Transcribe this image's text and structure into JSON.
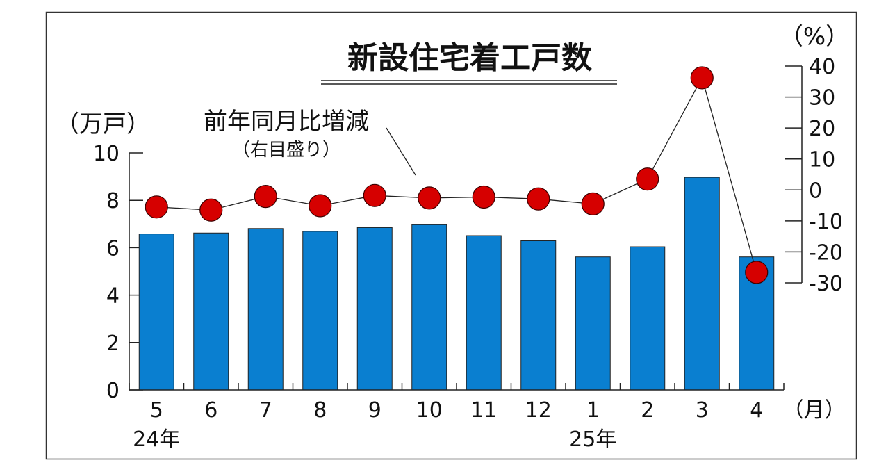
{
  "chart_data": {
    "type": "bar",
    "title": "新設住宅着工戸数",
    "categories": [
      "5",
      "6",
      "7",
      "8",
      "9",
      "10",
      "11",
      "12",
      "1",
      "2",
      "3",
      "4"
    ],
    "x_unit_label": "（月）",
    "year_labels": [
      {
        "text": "24年",
        "category": "5"
      },
      {
        "text": "25年",
        "category": "1"
      }
    ],
    "left_axis": {
      "unit_label": "（万戸）",
      "ylim": [
        0,
        10
      ],
      "ticks": [
        "0",
        "2",
        "4",
        "6",
        "8",
        "10"
      ]
    },
    "right_axis": {
      "unit_label": "（%）",
      "ylim": [
        -30,
        40
      ],
      "ticks": [
        "-30",
        "-20",
        "-10",
        "0",
        "10",
        "20",
        "30",
        "40"
      ]
    },
    "series": [
      {
        "name": "新設住宅着工戸数",
        "type": "bar",
        "axis": "left",
        "color": "#0a7fd0",
        "values": [
          6.58,
          6.62,
          6.81,
          6.69,
          6.85,
          6.97,
          6.51,
          6.29,
          5.61,
          6.04,
          8.97,
          5.61
        ]
      },
      {
        "name": "前年同月比増減",
        "sublabel": "（右目盛り）",
        "type": "line",
        "axis": "right",
        "color": "#d60000",
        "values": [
          -5.5,
          -6.5,
          -2.1,
          -5.1,
          -1.8,
          -2.6,
          -2.3,
          -2.9,
          -4.5,
          3.5,
          36.2,
          -26.6
        ]
      }
    ],
    "grid": false,
    "legend": "none"
  }
}
